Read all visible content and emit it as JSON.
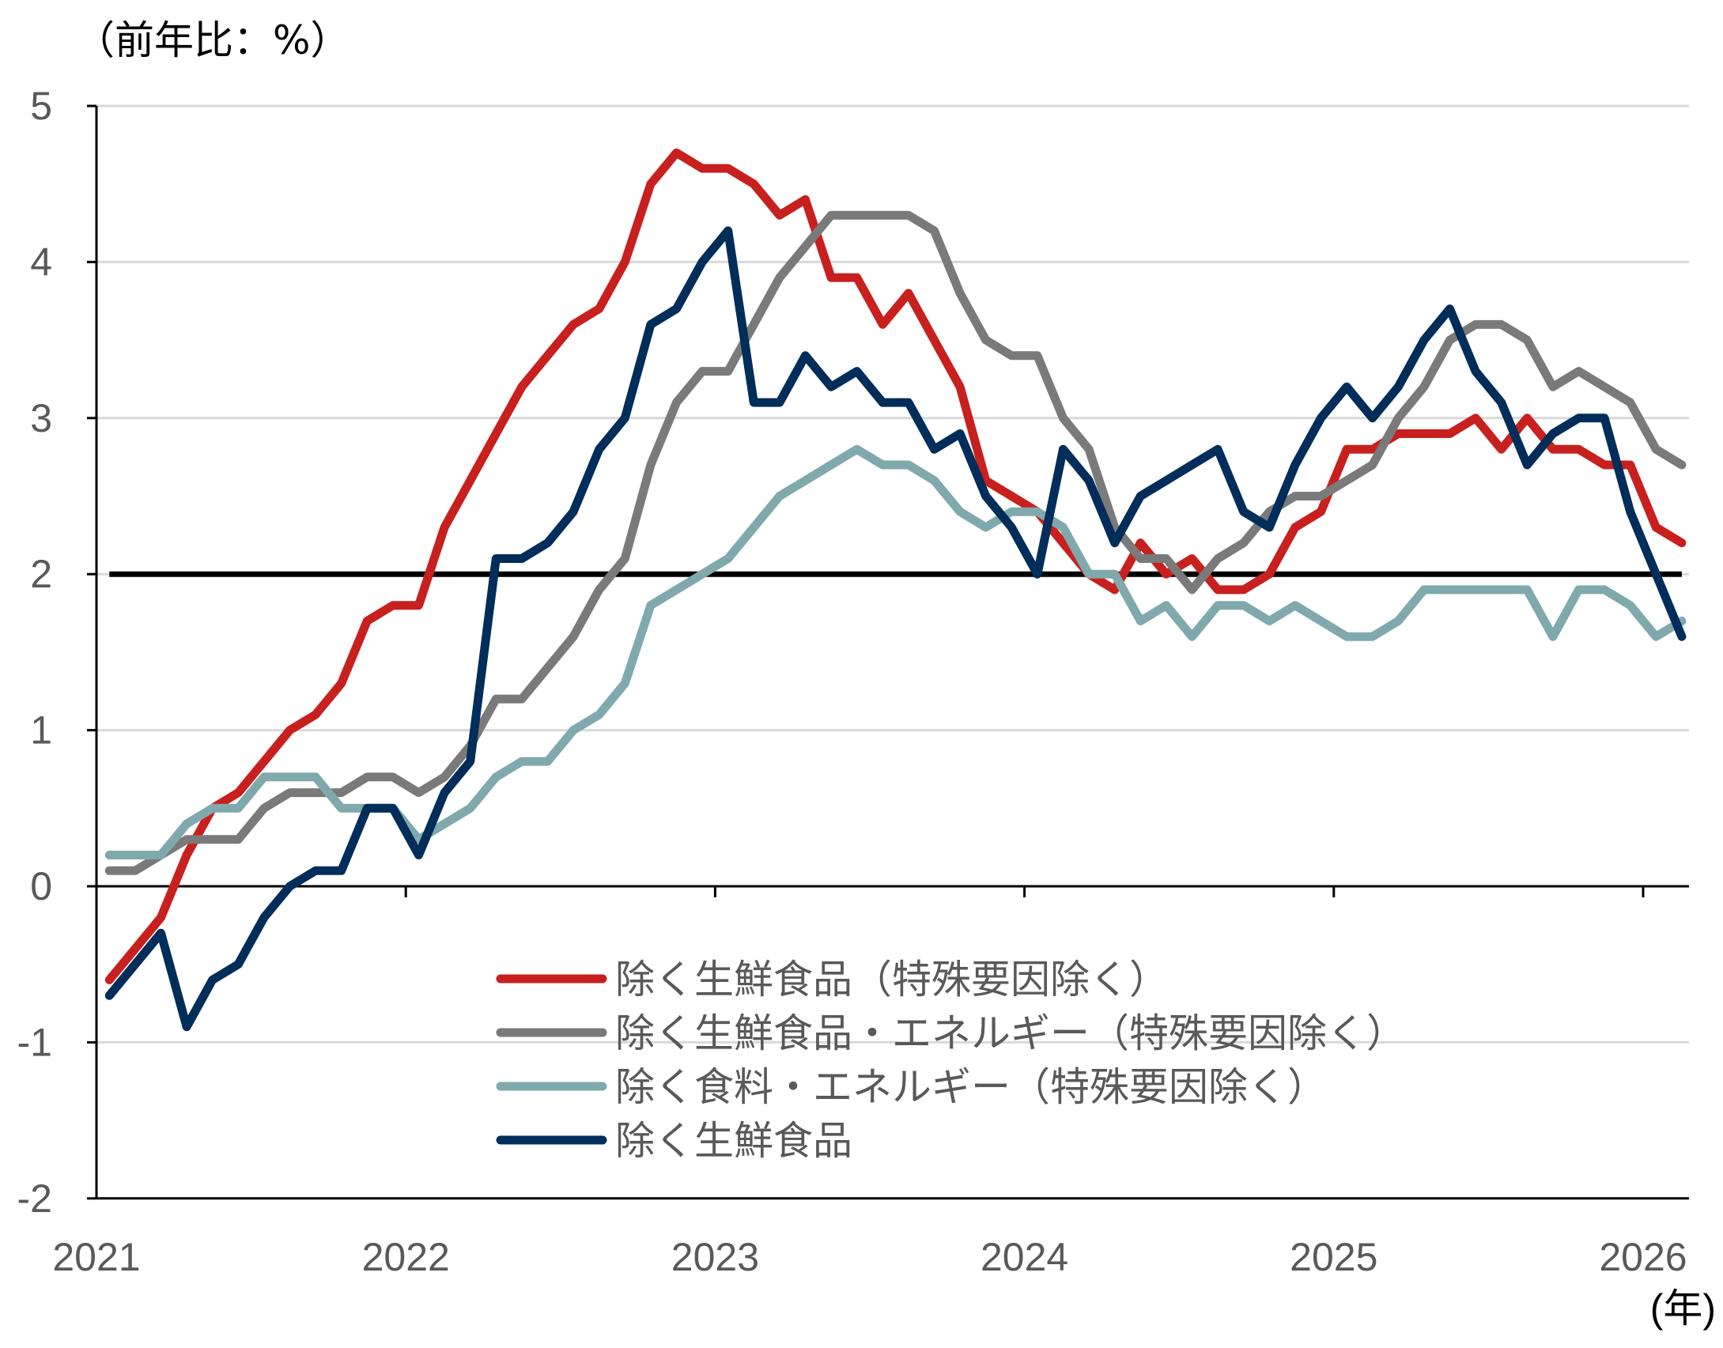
{
  "chart_data": {
    "type": "line",
    "title": "",
    "ylabel": "（前年比：%）",
    "xlabel": "(年)",
    "ylim": [
      -2,
      5
    ],
    "yticks": [
      "5",
      "4",
      "3",
      "2",
      "1",
      "0",
      "-1",
      "-2"
    ],
    "ytick_values": [
      5,
      4,
      3,
      2,
      1,
      0,
      -1,
      -2
    ],
    "xticks": [
      "2021",
      "2022",
      "2023",
      "2024",
      "2025",
      "2026"
    ],
    "grid": true,
    "legend_position": "bottom-center",
    "reference_line": {
      "value": 2,
      "color": "#000000"
    },
    "x": [
      "2021-01",
      "2021-02",
      "2021-03",
      "2021-04",
      "2021-05",
      "2021-06",
      "2021-07",
      "2021-08",
      "2021-09",
      "2021-10",
      "2021-11",
      "2021-12",
      "2022-01",
      "2022-02",
      "2022-03",
      "2022-04",
      "2022-05",
      "2022-06",
      "2022-07",
      "2022-08",
      "2022-09",
      "2022-10",
      "2022-11",
      "2022-12",
      "2023-01",
      "2023-02",
      "2023-03",
      "2023-04",
      "2023-05",
      "2023-06",
      "2023-07",
      "2023-08",
      "2023-09",
      "2023-10",
      "2023-11",
      "2023-12",
      "2024-01",
      "2024-02",
      "2024-03",
      "2024-04",
      "2024-05",
      "2024-06",
      "2024-07",
      "2024-08",
      "2024-09",
      "2024-10",
      "2024-11",
      "2024-12",
      "2025-01",
      "2025-02",
      "2025-03",
      "2025-04",
      "2025-05",
      "2025-06",
      "2025-07",
      "2025-08",
      "2025-09",
      "2025-10",
      "2025-11",
      "2025-12",
      "2026-01",
      "2026-02"
    ],
    "series": [
      {
        "name": "除く生鮮食品（特殊要因除く）",
        "color": "#c8201e",
        "values": [
          -0.6,
          -0.4,
          -0.2,
          0.2,
          0.5,
          0.6,
          0.8,
          1.0,
          1.1,
          1.3,
          1.7,
          1.8,
          1.8,
          2.3,
          2.6,
          2.9,
          3.2,
          3.4,
          3.6,
          3.7,
          4.0,
          4.5,
          4.7,
          4.6,
          4.6,
          4.5,
          4.3,
          4.4,
          3.9,
          3.9,
          3.6,
          3.8,
          3.5,
          3.2,
          2.6,
          2.5,
          2.4,
          2.2,
          2.0,
          1.9,
          2.2,
          2.0,
          2.1,
          1.9,
          1.9,
          2.0,
          2.3,
          2.4,
          2.8,
          2.8,
          2.9,
          2.9,
          2.9,
          3.0,
          2.8,
          3.0,
          2.8,
          2.8,
          2.7,
          2.7,
          2.3,
          2.2
        ]
      },
      {
        "name": "除く生鮮食品・エネルギー（特殊要因除く）",
        "color": "#7a7a7a",
        "values": [
          0.1,
          0.1,
          0.2,
          0.3,
          0.3,
          0.3,
          0.5,
          0.6,
          0.6,
          0.6,
          0.7,
          0.7,
          0.6,
          0.7,
          0.9,
          1.2,
          1.2,
          1.4,
          1.6,
          1.9,
          2.1,
          2.7,
          3.1,
          3.3,
          3.3,
          3.6,
          3.9,
          4.1,
          4.3,
          4.3,
          4.3,
          4.3,
          4.2,
          3.8,
          3.5,
          3.4,
          3.4,
          3.0,
          2.8,
          2.3,
          2.1,
          2.1,
          1.9,
          2.1,
          2.2,
          2.4,
          2.5,
          2.5,
          2.6,
          2.7,
          3.0,
          3.2,
          3.5,
          3.6,
          3.6,
          3.5,
          3.2,
          3.3,
          3.2,
          3.1,
          2.8,
          2.7
        ]
      },
      {
        "name": "除く食料・エネルギー（特殊要因除く）",
        "color": "#7fa9ad",
        "values": [
          0.2,
          0.2,
          0.2,
          0.4,
          0.5,
          0.5,
          0.7,
          0.7,
          0.7,
          0.5,
          0.5,
          0.5,
          0.3,
          0.4,
          0.5,
          0.7,
          0.8,
          0.8,
          1.0,
          1.1,
          1.3,
          1.8,
          1.9,
          2.0,
          2.1,
          2.3,
          2.5,
          2.6,
          2.7,
          2.8,
          2.7,
          2.7,
          2.6,
          2.4,
          2.3,
          2.4,
          2.4,
          2.3,
          2.0,
          2.0,
          1.7,
          1.8,
          1.6,
          1.8,
          1.8,
          1.7,
          1.8,
          1.7,
          1.6,
          1.6,
          1.7,
          1.9,
          1.9,
          1.9,
          1.9,
          1.9,
          1.6,
          1.9,
          1.9,
          1.8,
          1.6,
          1.7
        ]
      },
      {
        "name": "除く生鮮食品",
        "color": "#002d5a",
        "values": [
          -0.7,
          -0.5,
          -0.3,
          -0.9,
          -0.6,
          -0.5,
          -0.2,
          0.0,
          0.1,
          0.1,
          0.5,
          0.5,
          0.2,
          0.6,
          0.8,
          2.1,
          2.1,
          2.2,
          2.4,
          2.8,
          3.0,
          3.6,
          3.7,
          4.0,
          4.2,
          3.1,
          3.1,
          3.4,
          3.2,
          3.3,
          3.1,
          3.1,
          2.8,
          2.9,
          2.5,
          2.3,
          2.0,
          2.8,
          2.6,
          2.2,
          2.5,
          2.6,
          2.7,
          2.8,
          2.4,
          2.3,
          2.7,
          3.0,
          3.2,
          3.0,
          3.2,
          3.5,
          3.7,
          3.3,
          3.1,
          2.7,
          2.9,
          3.0,
          3.0,
          2.4,
          2.0,
          1.6
        ]
      }
    ]
  }
}
